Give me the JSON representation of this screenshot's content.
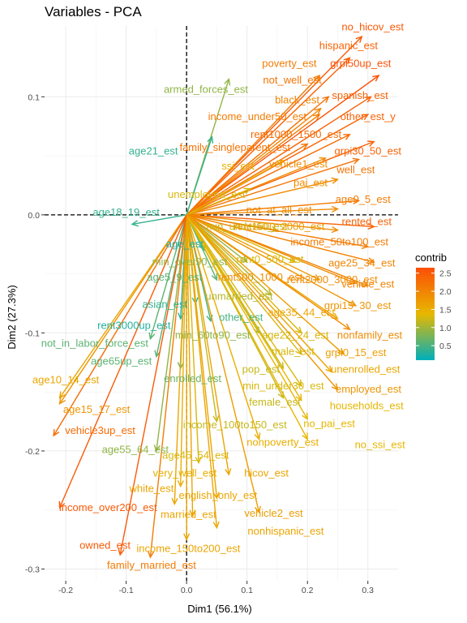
{
  "chart_data": {
    "type": "scatter",
    "title": "Variables - PCA",
    "xlabel": "Dim1 (56.1%)",
    "ylabel": "Dim2 (27.3%)",
    "xlim": [
      -0.235,
      0.35
    ],
    "ylim": [
      -0.31,
      0.16
    ],
    "x_ticks": [
      -0.2,
      -0.1,
      0.0,
      0.1,
      0.2,
      0.3
    ],
    "x_tick_labels": [
      "-0.2",
      "-0.1",
      "0.0",
      "0.1",
      "0.2",
      "0.3"
    ],
    "y_ticks": [
      -0.3,
      -0.2,
      -0.1,
      0.0,
      0.1
    ],
    "y_tick_labels": [
      "-0.3",
      "-0.2",
      "-0.1",
      "0.0",
      "0.1"
    ],
    "grid": true,
    "reference_lines": {
      "x": 0,
      "y": 0,
      "style": "dashed"
    },
    "legend": {
      "title": "contrib",
      "placement": "right",
      "ticks": [
        0.5,
        1.0,
        1.5,
        2.0,
        2.5
      ],
      "tick_labels": [
        "0.5",
        "1.0",
        "1.5",
        "2.0",
        "2.5"
      ],
      "range": [
        0.1,
        2.65
      ],
      "colors": [
        "#00AFBB",
        "#E7B800",
        "#FC4E07"
      ]
    },
    "variables": [
      {
        "name": "no_hicov_est",
        "x": 0.29,
        "y": 0.151,
        "contrib": 2.5
      },
      {
        "name": "hispanic_est",
        "x": 0.27,
        "y": 0.133,
        "contrib": 2.4
      },
      {
        "name": "poverty_est",
        "x": 0.22,
        "y": 0.118,
        "contrib": 2.1
      },
      {
        "name": "grpi50up_est",
        "x": 0.318,
        "y": 0.118,
        "contrib": 2.6
      },
      {
        "name": "not_well_est",
        "x": 0.235,
        "y": 0.1,
        "contrib": 2.2
      },
      {
        "name": "armed_forces_est",
        "x": 0.07,
        "y": 0.115,
        "contrib": 0.9
      },
      {
        "name": "spanish_est",
        "x": 0.305,
        "y": 0.1,
        "contrib": 2.4
      },
      {
        "name": "black_est",
        "x": 0.222,
        "y": 0.09,
        "contrib": 2.0
      },
      {
        "name": "income_under50_est",
        "x": 0.22,
        "y": 0.085,
        "contrib": 2.1
      },
      {
        "name": "other_est_y",
        "x": 0.3,
        "y": 0.085,
        "contrib": 2.4
      },
      {
        "name": "rent1000_1500_est",
        "x": 0.27,
        "y": 0.068,
        "contrib": 2.3
      },
      {
        "name": "family_singleparent_est",
        "x": 0.2,
        "y": 0.06,
        "contrib": 2.2
      },
      {
        "name": "age21_est",
        "x": 0.042,
        "y": 0.066,
        "contrib": 0.4
      },
      {
        "name": "grpi30_50_est",
        "x": 0.31,
        "y": 0.062,
        "contrib": 2.4
      },
      {
        "name": "ssi_est",
        "x": 0.16,
        "y": 0.046,
        "contrib": 1.5
      },
      {
        "name": "vehicle1_est",
        "x": 0.23,
        "y": 0.048,
        "contrib": 1.9
      },
      {
        "name": "well_est",
        "x": 0.285,
        "y": 0.047,
        "contrib": 2.2
      },
      {
        "name": "pai_est",
        "x": 0.25,
        "y": 0.03,
        "contrib": 1.9
      },
      {
        "name": "unemployed_est",
        "x": 0.105,
        "y": 0.022,
        "contrib": 1.3
      },
      {
        "name": "age0_5_est",
        "x": 0.285,
        "y": 0.012,
        "contrib": 2.1
      },
      {
        "name": "not_at_all_est",
        "x": 0.25,
        "y": 0.005,
        "contrib": 1.9
      },
      {
        "name": "age18_19_est",
        "x": -0.09,
        "y": -0.008,
        "contrib": 0.4
      },
      {
        "name": "rented_est",
        "x": 0.31,
        "y": -0.01,
        "contrib": 2.4
      },
      {
        "name": "rent500_1000_est",
        "x": 0.25,
        "y": -0.013,
        "contrib": 1.9
      },
      {
        "name": "min_under60_est",
        "x": 0.15,
        "y": -0.013,
        "contrib": 1.2
      },
      {
        "name": "income_50to100_est",
        "x": 0.3,
        "y": -0.027,
        "contrib": 2.1
      },
      {
        "name": "age_est",
        "x": 0.03,
        "y": -0.03,
        "contrib": 0.3
      },
      {
        "name": "age25_34_est",
        "x": 0.31,
        "y": -0.04,
        "contrib": 2.0
      },
      {
        "name": "min_over90_est",
        "x": 0.1,
        "y": -0.04,
        "contrib": 0.9
      },
      {
        "name": "rent0_500_est",
        "x": 0.18,
        "y": -0.04,
        "contrib": 1.3
      },
      {
        "name": "age5_9_est",
        "x": 0.05,
        "y": -0.055,
        "contrib": 0.6
      },
      {
        "name": "rent1500_2000_est",
        "x": 0.22,
        "y": -0.055,
        "contrib": 1.7
      },
      {
        "name": "rent2000_3000_est",
        "x": 0.28,
        "y": -0.058,
        "contrib": 1.9
      },
      {
        "name": "vehicle_est",
        "x": 0.3,
        "y": -0.06,
        "contrib": 2.0
      },
      {
        "name": "unmarried_est",
        "x": 0.14,
        "y": -0.068,
        "contrib": 1.1
      },
      {
        "name": "asian_est",
        "x": 0.015,
        "y": -0.075,
        "contrib": 0.4
      },
      {
        "name": "grpi15_30_est",
        "x": 0.28,
        "y": -0.077,
        "contrib": 1.8
      },
      {
        "name": "age35_44_est",
        "x": 0.25,
        "y": -0.088,
        "contrib": 1.6
      },
      {
        "name": "other_est",
        "x": 0.04,
        "y": -0.09,
        "contrib": 0.5
      },
      {
        "name": "rent3000up_est",
        "x": -0.01,
        "y": -0.088,
        "contrib": 0.3
      },
      {
        "name": "nonfamily_est",
        "x": 0.27,
        "y": -0.097,
        "contrib": 1.9
      },
      {
        "name": "min_60to90_est",
        "x": 0.12,
        "y": -0.1,
        "contrib": 0.9
      },
      {
        "name": "age22_24_est",
        "x": 0.19,
        "y": -0.1,
        "contrib": 1.3
      },
      {
        "name": "not_in_labor_force_est",
        "x": -0.06,
        "y": -0.105,
        "contrib": 0.6
      },
      {
        "name": "male_est",
        "x": 0.19,
        "y": -0.118,
        "contrib": 1.3
      },
      {
        "name": "grpi0_15_est",
        "x": 0.26,
        "y": -0.118,
        "contrib": 1.7
      },
      {
        "name": "age65up_est",
        "x": -0.05,
        "y": -0.12,
        "contrib": 0.6
      },
      {
        "name": "pop_est",
        "x": 0.16,
        "y": -0.13,
        "contrib": 1.2
      },
      {
        "name": "enrolled_est",
        "x": -0.01,
        "y": -0.13,
        "contrib": 0.7
      },
      {
        "name": "unenrolled_est",
        "x": 0.24,
        "y": -0.133,
        "contrib": 1.6
      },
      {
        "name": "age10_14_est",
        "x": -0.21,
        "y": -0.155,
        "contrib": 1.6
      },
      {
        "name": "min_under30_est",
        "x": 0.19,
        "y": -0.145,
        "contrib": 1.3
      },
      {
        "name": "employed_est",
        "x": 0.25,
        "y": -0.148,
        "contrib": 1.8
      },
      {
        "name": "female_est",
        "x": 0.16,
        "y": -0.155,
        "contrib": 1.2
      },
      {
        "name": "households_est",
        "x": 0.19,
        "y": -0.157,
        "contrib": 1.4
      },
      {
        "name": "age15_17_est",
        "x": -0.21,
        "y": -0.16,
        "contrib": 1.8
      },
      {
        "name": "income_100to150_est",
        "x": 0.05,
        "y": -0.175,
        "contrib": 1.2
      },
      {
        "name": "vehicle3up_est",
        "x": -0.22,
        "y": -0.187,
        "contrib": 2.3
      },
      {
        "name": "no_pai_est",
        "x": 0.2,
        "y": -0.173,
        "contrib": 1.4
      },
      {
        "name": "nonpoverty_est",
        "x": 0.12,
        "y": -0.19,
        "contrib": 1.5
      },
      {
        "name": "no_ssi_est",
        "x": 0.2,
        "y": -0.19,
        "contrib": 1.4
      },
      {
        "name": "age55_64_est",
        "x": -0.05,
        "y": -0.2,
        "contrib": 0.9
      },
      {
        "name": "age45_54_est",
        "x": 0.02,
        "y": -0.21,
        "contrib": 1.3
      },
      {
        "name": "very_well_est",
        "x": -0.01,
        "y": -0.23,
        "contrib": 1.5
      },
      {
        "name": "hicov_est",
        "x": 0.07,
        "y": -0.22,
        "contrib": 1.6
      },
      {
        "name": "white_est",
        "x": -0.02,
        "y": -0.245,
        "contrib": 1.6
      },
      {
        "name": "english_only_est",
        "x": 0.05,
        "y": -0.24,
        "contrib": 1.6
      },
      {
        "name": "income_over200_est",
        "x": -0.21,
        "y": -0.248,
        "contrib": 2.5
      },
      {
        "name": "vehicle2_est",
        "x": 0.12,
        "y": -0.252,
        "contrib": 1.7
      },
      {
        "name": "married_est",
        "x": 0.01,
        "y": -0.255,
        "contrib": 1.6
      },
      {
        "name": "nonhispanic_est",
        "x": 0.05,
        "y": -0.265,
        "contrib": 1.6
      },
      {
        "name": "owned_est",
        "x": -0.11,
        "y": -0.288,
        "contrib": 2.5
      },
      {
        "name": "income_150to200_est",
        "x": 0.0,
        "y": -0.275,
        "contrib": 1.6
      },
      {
        "name": "family_married_est",
        "x": -0.06,
        "y": -0.29,
        "contrib": 2.1
      }
    ],
    "label_positions": {
      "no_hicov_est": [
        0.308,
        0.159
      ],
      "hispanic_est": [
        0.268,
        0.143
      ],
      "poverty_est": [
        0.17,
        0.128
      ],
      "grpi50up_est": [
        0.288,
        0.128
      ],
      "not_well_est": [
        0.175,
        0.114
      ],
      "armed_forces_est": [
        0.032,
        0.106
      ],
      "spanish_est": [
        0.287,
        0.101
      ],
      "black_est": [
        0.183,
        0.097
      ],
      "income_under50_est": [
        0.117,
        0.083
      ],
      "other_est_y": [
        0.3,
        0.083
      ],
      "rent1000_1500_est": [
        0.181,
        0.068
      ],
      "family_singleparent_est": [
        0.08,
        0.057
      ],
      "age21_est": [
        -0.055,
        0.054
      ],
      "grpi30_50_est": [
        0.3,
        0.054
      ],
      "ssi_est": [
        0.085,
        0.041
      ],
      "vehicle1_est": [
        0.185,
        0.043
      ],
      "well_est": [
        0.28,
        0.038
      ],
      "pai_est": [
        0.205,
        0.027
      ],
      "unemployed_est": [
        0.033,
        0.017
      ],
      "age0_5_est": [
        0.292,
        0.013
      ],
      "not_at_all_est": [
        0.153,
        0.004
      ],
      "age18_19_est": [
        -0.1,
        0.002
      ],
      "rented_est": [
        0.298,
        -0.006
      ],
      "min_under60_est": [
        0.1,
        -0.01
      ],
      "rent1500_2000_est": [
        0.153,
        -0.01
      ],
      "income_50to100_est": [
        0.253,
        -0.023
      ],
      "age_est": [
        -0.003,
        -0.025
      ],
      "min_over90_est": [
        0.005,
        -0.04
      ],
      "rent0_500_est": [
        0.138,
        -0.038
      ],
      "age25_34_est": [
        0.29,
        -0.041
      ],
      "age5_9_est": [
        -0.02,
        -0.053
      ],
      "rent500_1000_est": [
        0.122,
        -0.053
      ],
      "rent2000_3000_est": [
        0.241,
        -0.055
      ],
      "vehicle_est": [
        0.3,
        -0.059
      ],
      "unmarried_est": [
        0.087,
        -0.069
      ],
      "asian_est": [
        -0.036,
        -0.076
      ],
      "grpi15_30_est": [
        0.283,
        -0.077
      ],
      "age35_44_est": [
        0.19,
        -0.083
      ],
      "other_est": [
        0.09,
        -0.087
      ],
      "rent3000up_est": [
        -0.087,
        -0.094
      ],
      "nonfamily_est": [
        0.303,
        -0.102
      ],
      "min_60to90_est": [
        0.043,
        -0.102
      ],
      "age22_24_est": [
        0.18,
        -0.102
      ],
      "not_in_labor_force_est": [
        -0.152,
        -0.109
      ],
      "male_est": [
        0.176,
        -0.116
      ],
      "grpi0_15_est": [
        0.28,
        -0.117
      ],
      "age65up_est": [
        -0.108,
        -0.124
      ],
      "pop_est": [
        0.123,
        -0.131
      ],
      "enrolled_est": [
        0.01,
        -0.139
      ],
      "unenrolled_est": [
        0.296,
        -0.131
      ],
      "age10_14_est": [
        -0.2,
        -0.14
      ],
      "min_under30_est": [
        0.16,
        -0.145
      ],
      "employed_est": [
        0.301,
        -0.148
      ],
      "female_est": [
        0.146,
        -0.159
      ],
      "households_est": [
        0.298,
        -0.162
      ],
      "age15_17_est": [
        -0.149,
        -0.165
      ],
      "income_100to150_est": [
        0.08,
        -0.178
      ],
      "vehicle3up_est": [
        -0.143,
        -0.183
      ],
      "no_pai_est": [
        0.236,
        -0.177
      ],
      "nonpoverty_est": [
        0.159,
        -0.193
      ],
      "no_ssi_est": [
        0.32,
        -0.195
      ],
      "age55_64_est": [
        -0.085,
        -0.199
      ],
      "age45_54_est": [
        0.015,
        -0.204
      ],
      "very_well_est": [
        -0.003,
        -0.219
      ],
      "hicov_est": [
        0.132,
        -0.219
      ],
      "white_est": [
        -0.058,
        -0.232
      ],
      "english_only_est": [
        0.052,
        -0.238
      ],
      "income_over200_est": [
        -0.13,
        -0.248
      ],
      "vehicle2_est": [
        0.144,
        -0.253
      ],
      "married_est": [
        0.003,
        -0.254
      ],
      "nonhispanic_est": [
        0.164,
        -0.268
      ],
      "owned_est": [
        -0.135,
        -0.28
      ],
      "income_150to200_est": [
        0.003,
        -0.283
      ],
      "family_married_est": [
        -0.058,
        -0.297
      ]
    }
  }
}
